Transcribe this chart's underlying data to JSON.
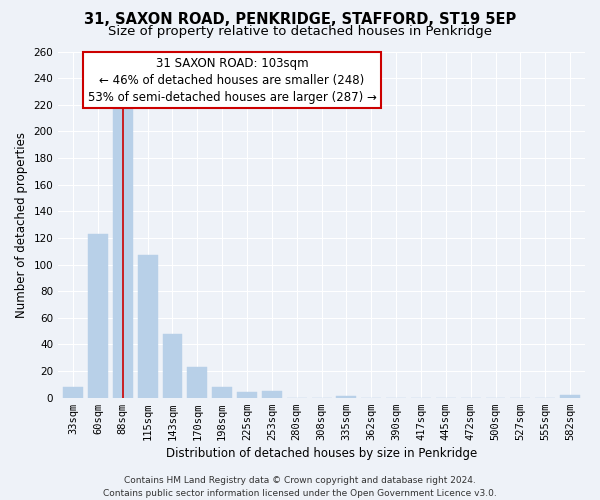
{
  "title": "31, SAXON ROAD, PENKRIDGE, STAFFORD, ST19 5EP",
  "subtitle": "Size of property relative to detached houses in Penkridge",
  "xlabel": "Distribution of detached houses by size in Penkridge",
  "ylabel": "Number of detached properties",
  "bin_labels": [
    "33sqm",
    "60sqm",
    "88sqm",
    "115sqm",
    "143sqm",
    "170sqm",
    "198sqm",
    "225sqm",
    "253sqm",
    "280sqm",
    "308sqm",
    "335sqm",
    "362sqm",
    "390sqm",
    "417sqm",
    "445sqm",
    "472sqm",
    "500sqm",
    "527sqm",
    "555sqm",
    "582sqm"
  ],
  "bar_values": [
    8,
    123,
    219,
    107,
    48,
    23,
    8,
    4,
    5,
    0,
    0,
    1,
    0,
    0,
    0,
    0,
    0,
    0,
    0,
    0,
    2
  ],
  "bar_color": "#b8d0e8",
  "vline_x": 2.0,
  "vline_color": "#cc0000",
  "ylim": [
    0,
    260
  ],
  "yticks": [
    0,
    20,
    40,
    60,
    80,
    100,
    120,
    140,
    160,
    180,
    200,
    220,
    240,
    260
  ],
  "annotation_title": "31 SAXON ROAD: 103sqm",
  "annotation_line1": "← 46% of detached houses are smaller (248)",
  "annotation_line2": "53% of semi-detached houses are larger (287) →",
  "annotation_box_color": "#ffffff",
  "annotation_box_edge": "#cc0000",
  "footer_line1": "Contains HM Land Registry data © Crown copyright and database right 2024.",
  "footer_line2": "Contains public sector information licensed under the Open Government Licence v3.0.",
  "background_color": "#eef2f8",
  "grid_color": "#ffffff",
  "title_fontsize": 10.5,
  "subtitle_fontsize": 9.5,
  "axis_label_fontsize": 8.5,
  "tick_fontsize": 7.5,
  "annotation_fontsize": 8.5,
  "footer_fontsize": 6.5
}
